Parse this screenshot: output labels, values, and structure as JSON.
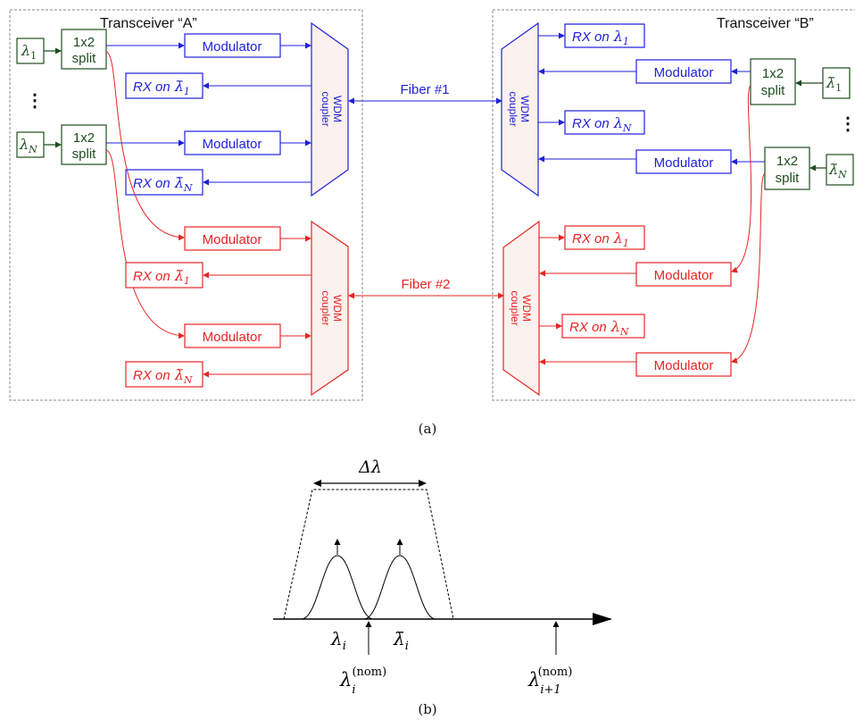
{
  "panel_a": {
    "transceiver_a_title": "Transceiver “A”",
    "transceiver_b_title": "Transceiver “B”",
    "sources": {
      "lambda": "λ",
      "sub_1": "1",
      "sub_n": "N",
      "ellipsis": "⋮"
    },
    "split_line1": "1x2",
    "split_line2": "split",
    "modulator": "Modulator",
    "rx_prefix": "RX on",
    "rx_lambda": "λ",
    "rx_lambda_bar": "λ̄",
    "coupler_line1": "WDM",
    "coupler_line2": "coupler",
    "fiber1": "Fiber #1",
    "fiber2": "Fiber #2",
    "caption": "(a)"
  },
  "panel_b": {
    "delta_lambda": "Δλ",
    "lambda_i": "λ",
    "lambda_i_bar": "λ̄",
    "sub_i": "i",
    "sub_i1": "i+1",
    "nom": "(nom)",
    "caption": "(b)"
  },
  "colors": {
    "green": "#1e4d1e",
    "blue": "#1f1fdd",
    "red": "#e82424",
    "coupler_fill": "#fbf1ee"
  }
}
